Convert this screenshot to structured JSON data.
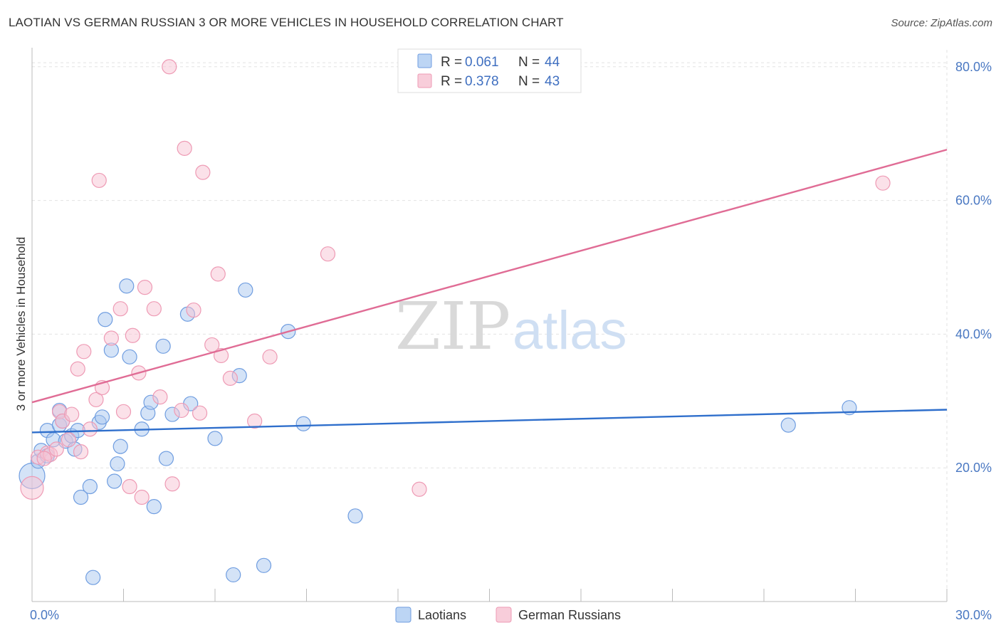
{
  "header": {
    "title": "LAOTIAN VS GERMAN RUSSIAN 3 OR MORE VEHICLES IN HOUSEHOLD CORRELATION CHART",
    "source": "Source: ZipAtlas.com"
  },
  "watermark": {
    "zip": "ZIP",
    "atlas": "atlas"
  },
  "chart_data": {
    "type": "scatter",
    "title": "LAOTIAN VS GERMAN RUSSIAN 3 OR MORE VEHICLES IN HOUSEHOLD CORRELATION CHART",
    "xlabel": "",
    "ylabel": "3 or more Vehicles in Household",
    "xlim": [
      0,
      30
    ],
    "ylim": [
      0,
      82
    ],
    "x_tick_labels": [
      {
        "value": 0,
        "label": "0.0%"
      },
      {
        "value": 30,
        "label": "30.0%"
      }
    ],
    "y_tick_labels": [
      {
        "value": 20,
        "label": "20.0%"
      },
      {
        "value": 40,
        "label": "40.0%"
      },
      {
        "value": 60,
        "label": "60.0%"
      },
      {
        "value": 80,
        "label": "80.0%"
      }
    ],
    "x_minor_ticks": [
      3,
      6,
      9,
      12,
      15,
      18,
      21,
      24,
      27,
      30
    ],
    "grid": true,
    "legend_position": "top-center",
    "series": [
      {
        "name": "Laotians",
        "color": "#6f9de0",
        "fill": "#a9c8f0",
        "line_color": "#2f6fcc",
        "R": "0.061",
        "N": "44",
        "trend": {
          "x0": 0,
          "y0": 25.3,
          "x1": 30,
          "y1": 28.7
        },
        "points": [
          [
            0.0,
            18.8,
            18
          ],
          [
            0.2,
            21.0,
            10
          ],
          [
            0.3,
            22.6,
            10
          ],
          [
            0.5,
            21.8,
            10
          ],
          [
            0.5,
            25.6,
            10
          ],
          [
            0.7,
            24.2,
            10
          ],
          [
            0.9,
            26.4,
            10
          ],
          [
            0.9,
            28.6,
            10
          ],
          [
            1.0,
            27.0,
            10
          ],
          [
            1.1,
            24.0,
            10
          ],
          [
            1.3,
            24.8,
            10
          ],
          [
            1.4,
            22.8,
            10
          ],
          [
            1.5,
            25.6,
            10
          ],
          [
            1.6,
            15.6,
            10
          ],
          [
            1.9,
            17.2,
            10
          ],
          [
            2.0,
            3.6,
            10
          ],
          [
            2.2,
            26.8,
            10
          ],
          [
            2.3,
            27.6,
            10
          ],
          [
            2.4,
            42.2,
            10
          ],
          [
            2.6,
            37.6,
            10
          ],
          [
            2.7,
            18.0,
            10
          ],
          [
            2.8,
            20.6,
            10
          ],
          [
            2.9,
            23.2,
            10
          ],
          [
            3.1,
            47.2,
            10
          ],
          [
            3.2,
            36.6,
            10
          ],
          [
            3.6,
            25.8,
            10
          ],
          [
            3.8,
            28.2,
            10
          ],
          [
            3.9,
            29.8,
            10
          ],
          [
            4.0,
            14.2,
            10
          ],
          [
            4.3,
            38.2,
            10
          ],
          [
            4.4,
            21.4,
            10
          ],
          [
            4.6,
            28.0,
            10
          ],
          [
            5.1,
            43.0,
            10
          ],
          [
            5.2,
            29.6,
            10
          ],
          [
            6.0,
            24.4,
            10
          ],
          [
            6.6,
            4.0,
            10
          ],
          [
            6.8,
            33.8,
            10
          ],
          [
            7.0,
            46.6,
            10
          ],
          [
            7.6,
            5.4,
            10
          ],
          [
            8.4,
            40.4,
            10
          ],
          [
            8.9,
            26.6,
            10
          ],
          [
            10.6,
            12.8,
            10
          ],
          [
            24.8,
            26.4,
            10
          ],
          [
            26.8,
            29.0,
            10
          ]
        ]
      },
      {
        "name": "German Russians",
        "color": "#ee9ab4",
        "fill": "#f7c3d3",
        "line_color": "#e06c95",
        "R": "0.378",
        "N": "43",
        "trend": {
          "x0": 0,
          "y0": 29.8,
          "x1": 30,
          "y1": 67.6
        },
        "points": [
          [
            0.0,
            17.0,
            16
          ],
          [
            0.2,
            21.6,
            10
          ],
          [
            0.5,
            22.2,
            10
          ],
          [
            0.6,
            22.0,
            10
          ],
          [
            0.8,
            22.8,
            10
          ],
          [
            0.9,
            28.4,
            10
          ],
          [
            1.0,
            27.0,
            10
          ],
          [
            1.2,
            24.2,
            10
          ],
          [
            1.3,
            28.0,
            10
          ],
          [
            1.5,
            34.8,
            10
          ],
          [
            1.6,
            22.4,
            10
          ],
          [
            1.7,
            37.4,
            10
          ],
          [
            1.9,
            25.8,
            10
          ],
          [
            2.1,
            30.2,
            10
          ],
          [
            2.2,
            63.0,
            10
          ],
          [
            2.3,
            32.0,
            10
          ],
          [
            2.6,
            39.4,
            10
          ],
          [
            2.9,
            43.8,
            10
          ],
          [
            3.0,
            28.4,
            10
          ],
          [
            3.2,
            17.2,
            10
          ],
          [
            3.3,
            39.8,
            10
          ],
          [
            3.5,
            34.2,
            10
          ],
          [
            3.6,
            15.6,
            10
          ],
          [
            3.7,
            47.0,
            10
          ],
          [
            4.0,
            43.8,
            10
          ],
          [
            4.2,
            30.6,
            10
          ],
          [
            4.5,
            80.0,
            10
          ],
          [
            4.6,
            17.6,
            10
          ],
          [
            4.9,
            28.6,
            10
          ],
          [
            5.0,
            67.8,
            10
          ],
          [
            5.3,
            43.6,
            10
          ],
          [
            5.5,
            28.2,
            10
          ],
          [
            5.6,
            64.2,
            10
          ],
          [
            5.9,
            38.4,
            10
          ],
          [
            6.1,
            49.0,
            10
          ],
          [
            6.2,
            36.8,
            10
          ],
          [
            6.5,
            33.4,
            10
          ],
          [
            7.3,
            27.0,
            10
          ],
          [
            7.8,
            36.6,
            10
          ],
          [
            9.7,
            52.0,
            10
          ],
          [
            12.7,
            16.8,
            10
          ],
          [
            27.9,
            62.6,
            10
          ],
          [
            0.4,
            21.4,
            10
          ]
        ]
      }
    ]
  },
  "legend": {
    "r_label": "R =",
    "n_label": "N =",
    "items": [
      {
        "r": "0.061",
        "n": "44"
      },
      {
        "r": "0.378",
        "n": "43"
      }
    ],
    "bottom": [
      {
        "label": "Laotians"
      },
      {
        "label": "German Russians"
      }
    ]
  }
}
